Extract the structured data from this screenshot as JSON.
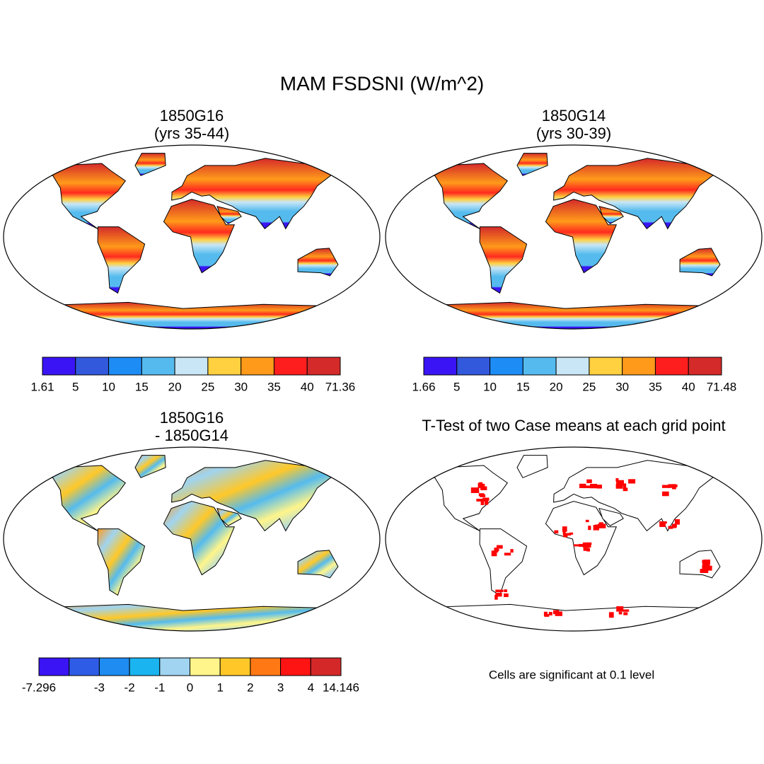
{
  "title": "MAM FSDSNI (W/m^2)",
  "panels": [
    {
      "title_lines": [
        "1850G16",
        "(yrs 35-44)"
      ],
      "colorbar": {
        "colors": [
          "#3a14f5",
          "#3258dc",
          "#1e8cf5",
          "#55bbee",
          "#c8e6f5",
          "#ffd040",
          "#ff9a1a",
          "#ff1e1e",
          "#d42a2a"
        ],
        "labels": [
          "1.61",
          "5",
          "10",
          "15",
          "20",
          "25",
          "30",
          "35",
          "40",
          "71.36"
        ]
      }
    },
    {
      "title_lines": [
        "1850G14",
        "(yrs 30-39)"
      ],
      "colorbar": {
        "colors": [
          "#3a14f5",
          "#3258dc",
          "#1e8cf5",
          "#55bbee",
          "#c8e6f5",
          "#ffd040",
          "#ff9a1a",
          "#ff1e1e",
          "#d42a2a"
        ],
        "labels": [
          "1.66",
          "5",
          "10",
          "15",
          "20",
          "25",
          "30",
          "35",
          "40",
          "71.48"
        ]
      }
    },
    {
      "title_lines": [
        "1850G16",
        "- 1850G14"
      ],
      "colorbar": {
        "colors": [
          "#3a14f5",
          "#2f5ce6",
          "#1e8cf0",
          "#1ab4f0",
          "#a0d4f0",
          "#fff58a",
          "#ffc828",
          "#ff7814",
          "#ff1414",
          "#d42828"
        ],
        "labels": [
          "-7.296",
          null,
          "-3",
          "-2",
          "-1",
          "0",
          "1",
          "2",
          "3",
          "4",
          "14.146"
        ]
      }
    },
    {
      "title_lines": [
        "T-Test of two Case means at each grid point"
      ]
    }
  ],
  "note": "Cells are significant at 0.1 level"
}
